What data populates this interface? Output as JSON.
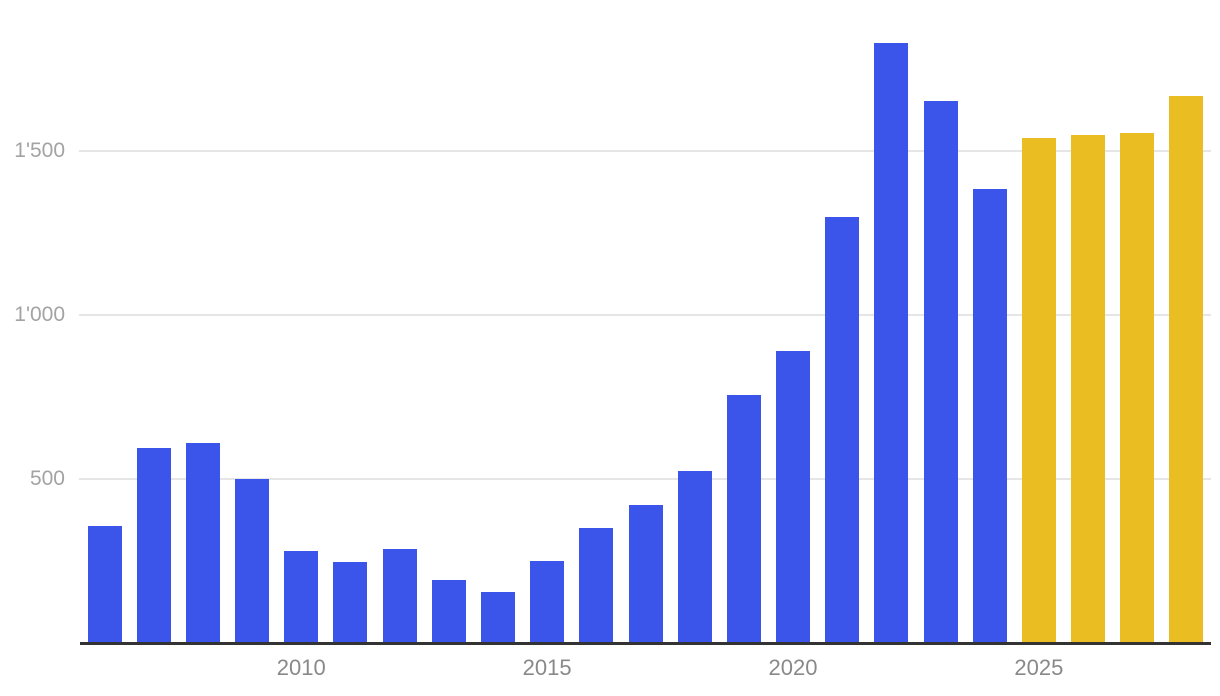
{
  "chart_data": {
    "type": "bar",
    "title": "",
    "xlabel": "",
    "ylabel": "",
    "x": [
      2006,
      2007,
      2008,
      2009,
      2010,
      2011,
      2012,
      2013,
      2014,
      2015,
      2016,
      2017,
      2018,
      2019,
      2020,
      2021,
      2022,
      2023,
      2024,
      2025,
      2026,
      2027,
      2028
    ],
    "values": [
      355,
      595,
      610,
      500,
      280,
      245,
      285,
      190,
      155,
      250,
      350,
      420,
      525,
      755,
      890,
      1300,
      1830,
      1655,
      1385,
      1540,
      1550,
      1555,
      1670
    ],
    "forecast_from": 2025,
    "ylim": [
      0,
      1900
    ],
    "grid": true,
    "legend_position": "none",
    "yticks": [
      {
        "value": 500,
        "label": "500"
      },
      {
        "value": 1000,
        "label": "1'000"
      },
      {
        "value": 1500,
        "label": "1'500"
      }
    ],
    "xticks": [
      {
        "year": 2010,
        "label": "2010"
      },
      {
        "year": 2015,
        "label": "2015"
      },
      {
        "year": 2020,
        "label": "2020"
      },
      {
        "year": 2025,
        "label": "2025"
      }
    ]
  },
  "colors": {
    "bar_actual": "#3B54EA",
    "bar_forecast": "#EABD23",
    "gridline": "#e6e6e6",
    "axis_line": "#333333",
    "y_label_text": "#a3a3a3",
    "x_label_text": "#898989",
    "background": "#ffffff"
  }
}
